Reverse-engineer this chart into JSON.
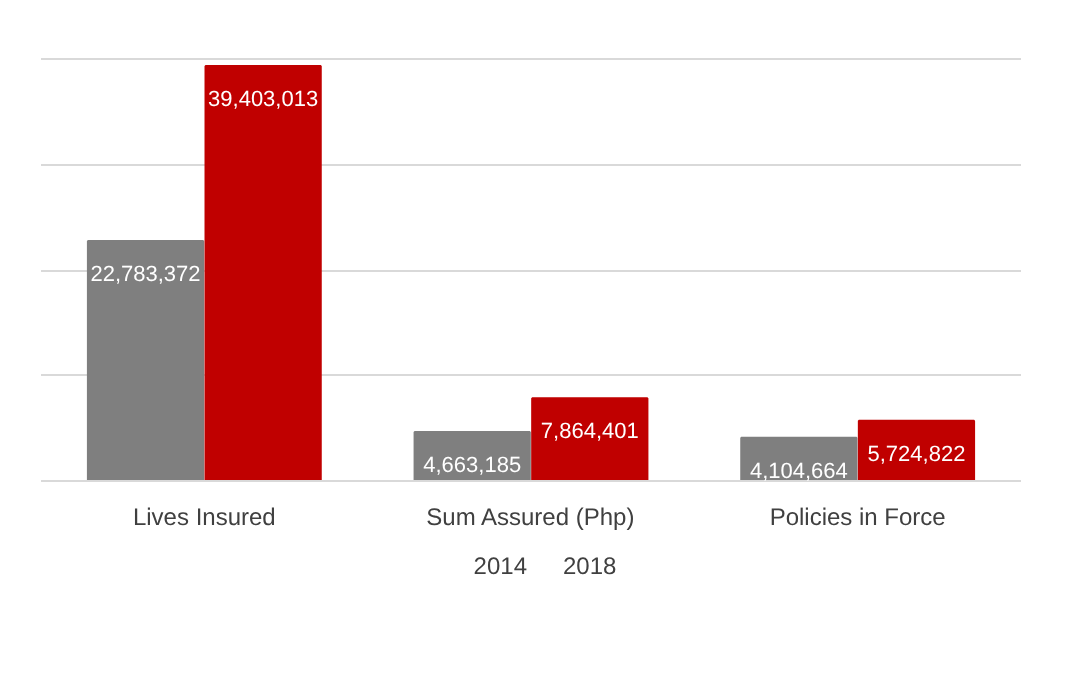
{
  "chart_data": {
    "type": "bar",
    "categories": [
      "Lives Insured",
      "Sum Assured (Php)",
      "Policies in Force"
    ],
    "series": [
      {
        "name": "2014",
        "color": "#7f7f7f",
        "values": [
          22783372,
          4663185,
          4104664
        ],
        "value_labels": [
          "22,783,372",
          "4,663,185",
          "4,104,664"
        ]
      },
      {
        "name": "2018",
        "color": "#c00000",
        "values": [
          39403013,
          7864401,
          5724822
        ],
        "value_labels": [
          "39,403,013",
          "7,864,401",
          "5,724,822"
        ]
      }
    ],
    "grid": "y",
    "legend": "bottom",
    "tick_labels": "x"
  }
}
